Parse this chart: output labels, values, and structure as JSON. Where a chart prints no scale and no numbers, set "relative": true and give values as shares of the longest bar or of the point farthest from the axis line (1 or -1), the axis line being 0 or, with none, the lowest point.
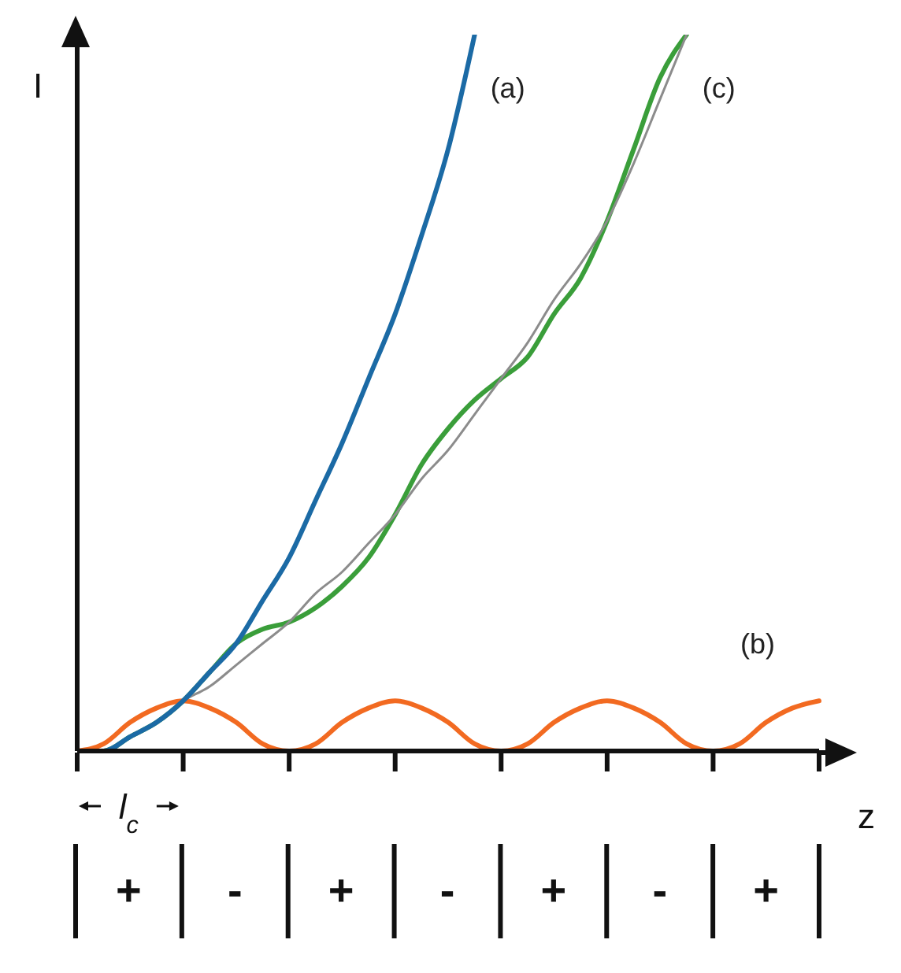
{
  "chart_data": {
    "type": "line",
    "relative": true,
    "xlabel": "z",
    "ylabel": "I",
    "categories": [
      null,
      null,
      null,
      null,
      null,
      null,
      null,
      null,
      null,
      null,
      null,
      null,
      null,
      null,
      null,
      null,
      null,
      null,
      null,
      null,
      null,
      null,
      null,
      null,
      null,
      null,
      null,
      null,
      null
    ],
    "series": [
      {
        "name": "(a)",
        "color": "#1b6aa5",
        "values": [
          0,
          0.0,
          0.02,
          0.04,
          0.07,
          0.11,
          0.15,
          0.21,
          0.27,
          0.35,
          0.43,
          0.52,
          0.61,
          0.72,
          0.84,
          1.0,
          null,
          null,
          null,
          null,
          null,
          null,
          null,
          null,
          null,
          null,
          null,
          null,
          null
        ]
      },
      {
        "name": "(b)",
        "color": "#f26a21",
        "values": [
          0,
          0.01,
          0.04,
          0.06,
          0.07,
          0.06,
          0.04,
          0.01,
          0,
          0.01,
          0.04,
          0.06,
          0.07,
          0.06,
          0.04,
          0.01,
          0,
          0.01,
          0.04,
          0.06,
          0.07,
          0.06,
          0.04,
          0.01,
          0,
          0.01,
          0.04,
          0.06,
          0.07
        ]
      },
      {
        "color": "#8c8c8c",
        "values": [
          0,
          0.0,
          0.02,
          0.04,
          0.07,
          0.09,
          0.12,
          0.15,
          0.18,
          0.22,
          0.25,
          0.29,
          0.33,
          0.38,
          0.42,
          0.47,
          0.52,
          0.57,
          0.63,
          0.68,
          0.74,
          0.82,
          0.91,
          1.0,
          null,
          null,
          null,
          null,
          null
        ]
      },
      {
        "name": "(c)",
        "color": "#3a9e3a",
        "values": [
          0,
          0.0,
          0.02,
          0.04,
          0.07,
          0.11,
          0.15,
          0.17,
          0.18,
          0.2,
          0.23,
          0.27,
          0.33,
          0.4,
          0.45,
          0.49,
          0.52,
          0.55,
          0.61,
          0.66,
          0.74,
          0.84,
          0.94,
          1.0,
          null,
          null,
          null,
          null,
          null
        ]
      }
    ],
    "annotations": [
      "l$_{c}$",
      "+",
      "-",
      "+",
      "-",
      "+",
      "-",
      "+"
    ],
    "marker": "none",
    "line_style": "solid"
  }
}
